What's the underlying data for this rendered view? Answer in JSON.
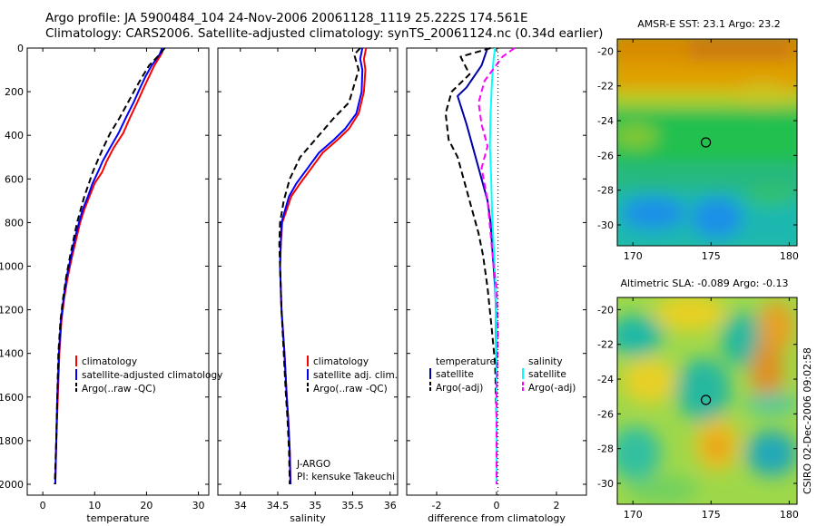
{
  "header": {
    "line1": "Argo profile: JA 5900484_104 24-Nov-2006 20061128_1119 25.222S 174.561E",
    "line2": "Climatology: CARS2006. Satellite-adjusted climatology: synTS_20061124.nc (0.34d earlier)"
  },
  "side_label": "CSIRO 02-Dec-2006 09:02:58",
  "chart_data": [
    {
      "type": "line",
      "id": "temperature",
      "xlabel": "temperature",
      "ylabel": "",
      "xlim": [
        -3,
        32
      ],
      "ylim": [
        2050,
        0
      ],
      "xticks": [
        0,
        10,
        20,
        30
      ],
      "yticks": [
        0,
        200,
        400,
        600,
        800,
        1000,
        1200,
        1400,
        1600,
        1800,
        2000
      ],
      "legend": [
        "climatology",
        "satellite-adjusted climatology",
        "Argo(..raw -QC)"
      ],
      "series": [
        {
          "name": "climatology",
          "color": "#ff0000",
          "dash": "",
          "x": [
            23.3,
            22.8,
            21.5,
            20.5,
            19.5,
            18.2,
            16.8,
            15.5,
            13.6,
            12.3,
            11.4,
            10.0,
            9.0,
            8.0,
            7.2,
            6.5,
            5.7,
            4.8,
            4.1,
            3.6,
            3.2,
            2.9,
            2.6,
            2.4
          ],
          "y": [
            0,
            30,
            80,
            130,
            180,
            250,
            320,
            390,
            460,
            520,
            570,
            620,
            680,
            740,
            800,
            870,
            950,
            1050,
            1150,
            1250,
            1400,
            1600,
            1800,
            2000
          ]
        },
        {
          "name": "satellite-adjusted climatology",
          "color": "#0000ff",
          "dash": "",
          "x": [
            23.0,
            22.5,
            21.0,
            19.8,
            18.8,
            17.5,
            16.0,
            14.6,
            12.9,
            11.5,
            10.6,
            9.6,
            8.7,
            7.7,
            7.0,
            6.2,
            5.5,
            4.6,
            4.0,
            3.5,
            3.1,
            2.8,
            2.6,
            2.4
          ],
          "y": [
            0,
            30,
            80,
            130,
            180,
            250,
            320,
            390,
            460,
            520,
            570,
            620,
            680,
            740,
            800,
            870,
            950,
            1050,
            1150,
            1250,
            1400,
            1600,
            1800,
            2000
          ]
        },
        {
          "name": "Argo(..raw -QC)",
          "color": "#000000",
          "dash": "7 4",
          "x": [
            23.5,
            22.5,
            20.5,
            19.2,
            18.0,
            16.4,
            14.8,
            13.0,
            11.6,
            10.5,
            9.6,
            8.9,
            8.0,
            7.3,
            6.6,
            6.0,
            5.3,
            4.5,
            3.9,
            3.4,
            3.0,
            2.8,
            2.6,
            2.3
          ],
          "y": [
            0,
            30,
            80,
            130,
            180,
            250,
            320,
            390,
            460,
            520,
            570,
            620,
            680,
            740,
            800,
            870,
            950,
            1050,
            1150,
            1250,
            1400,
            1600,
            1800,
            2000
          ]
        }
      ]
    },
    {
      "type": "line",
      "id": "salinity",
      "xlabel": "salinity",
      "xlim": [
        33.7,
        36.1
      ],
      "ylim": [
        2050,
        0
      ],
      "xticks": [
        34,
        34.5,
        35,
        35.5,
        36
      ],
      "legend": [
        "climatology",
        "satellite adj. clim.",
        "Argo(..raw -QC)"
      ],
      "annotation1": "J-ARGO",
      "annotation2": "PI: kensuke Takeuchi",
      "series": [
        {
          "name": "climatology",
          "color": "#ff0000",
          "dash": "",
          "x": [
            35.68,
            35.65,
            35.67,
            35.65,
            35.58,
            35.45,
            35.3,
            35.1,
            34.95,
            34.8,
            34.68,
            34.62,
            34.56,
            34.54,
            34.53,
            34.55,
            34.59,
            34.62,
            34.64,
            34.66,
            34.67
          ],
          "y": [
            0,
            50,
            100,
            200,
            300,
            370,
            420,
            480,
            550,
            620,
            680,
            740,
            800,
            900,
            1000,
            1200,
            1400,
            1600,
            1700,
            1850,
            2000
          ]
        },
        {
          "name": "satellite adj. clim.",
          "color": "#0000ff",
          "dash": "",
          "x": [
            35.63,
            35.6,
            35.63,
            35.62,
            35.55,
            35.4,
            35.25,
            35.05,
            34.9,
            34.75,
            34.65,
            34.6,
            34.55,
            34.54,
            34.53,
            34.55,
            34.59,
            34.62,
            34.64,
            34.66,
            34.67
          ],
          "y": [
            0,
            50,
            100,
            200,
            300,
            370,
            420,
            480,
            550,
            620,
            680,
            740,
            800,
            900,
            1000,
            1200,
            1400,
            1600,
            1700,
            1850,
            2000
          ]
        },
        {
          "name": "Argo(..raw -QC)",
          "color": "#000000",
          "dash": "7 4",
          "x": [
            35.6,
            35.52,
            35.58,
            35.45,
            35.25,
            35.1,
            34.95,
            34.8,
            34.66,
            34.58,
            34.53,
            34.52,
            34.53,
            34.55,
            34.58,
            34.61,
            34.63,
            34.65,
            34.66
          ],
          "y": [
            0,
            30,
            100,
            250,
            320,
            380,
            440,
            500,
            600,
            700,
            800,
            900,
            1000,
            1200,
            1400,
            1600,
            1700,
            1850,
            2000
          ]
        }
      ]
    },
    {
      "type": "line",
      "id": "difference",
      "xlabel": "difference from climatology",
      "xlim": [
        -3.0,
        3.0
      ],
      "ylim": [
        2050,
        0
      ],
      "xticks": [
        -2,
        0,
        2
      ],
      "legend_temperature_title": "temperature",
      "legend_salinity_title": "salinity",
      "legend": [
        "satellite",
        "Argo(-adj)",
        "satellite",
        "Argo(-adj)"
      ],
      "series": [
        {
          "name": "temperature satellite",
          "color": "#0000aa",
          "dash": "",
          "x": [
            -0.3,
            -0.5,
            -1.0,
            -1.3,
            -1.0,
            -0.7,
            -0.5,
            -0.3,
            -0.2,
            -0.15,
            -0.1,
            -0.05,
            -0.02,
            0.0,
            0.0,
            0.0
          ],
          "y": [
            0,
            80,
            180,
            220,
            350,
            500,
            600,
            700,
            800,
            900,
            1000,
            1100,
            1200,
            1500,
            1800,
            2000
          ]
        },
        {
          "name": "temperature Argo(-adj)",
          "color": "#000000",
          "dash": "7 4",
          "x": [
            -0.2,
            -1.2,
            -0.9,
            -1.5,
            -1.7,
            -1.6,
            -1.3,
            -1.0,
            -0.8,
            -0.6,
            -0.45,
            -0.3,
            -0.15,
            -0.05,
            0.0,
            0.0
          ],
          "y": [
            0,
            40,
            120,
            200,
            300,
            420,
            500,
            650,
            750,
            850,
            950,
            1100,
            1300,
            1450,
            1700,
            2000
          ]
        },
        {
          "name": "salinity satellite",
          "color": "#00ffff",
          "dash": "",
          "x": [
            -0.05,
            -0.1,
            -0.15,
            -0.2,
            -0.22,
            -0.18,
            -0.15,
            -0.1,
            -0.05,
            0.0,
            0.0,
            0.0
          ],
          "y": [
            0,
            50,
            150,
            300,
            450,
            600,
            750,
            900,
            1050,
            1300,
            1600,
            2000
          ]
        },
        {
          "name": "salinity Argo(-adj)",
          "color": "#ff00ff",
          "dash": "7 4",
          "x": [
            0.6,
            0.2,
            -0.4,
            -0.6,
            -0.5,
            -0.3,
            -0.5,
            -0.3,
            -0.2,
            -0.1,
            0.0,
            0.05,
            0.0,
            0.0
          ],
          "y": [
            0,
            40,
            150,
            250,
            350,
            450,
            550,
            700,
            850,
            1000,
            1100,
            1300,
            1600,
            2000
          ]
        }
      ]
    },
    {
      "type": "heatmap",
      "id": "sst_map",
      "title": "AMSR-E SST: 23.1  Argo: 23.2",
      "xlim": [
        169,
        180.5
      ],
      "ylim": [
        -31.2,
        -19.3
      ],
      "xticks": [
        170,
        175,
        180
      ],
      "yticks": [
        -20,
        -22,
        -24,
        -26,
        -28,
        -30
      ],
      "argo_position": [
        174.561,
        -25.222
      ]
    },
    {
      "type": "heatmap",
      "id": "sla_map",
      "title": "Altimetric SLA: -0.089  Argo: -0.13",
      "xlim": [
        169,
        180.5
      ],
      "ylim": [
        -31.2,
        -19.3
      ],
      "xticks": [
        170,
        175,
        180
      ],
      "yticks": [
        -20,
        -22,
        -24,
        -26,
        -28,
        -30
      ],
      "argo_position": [
        174.561,
        -25.222
      ]
    }
  ]
}
